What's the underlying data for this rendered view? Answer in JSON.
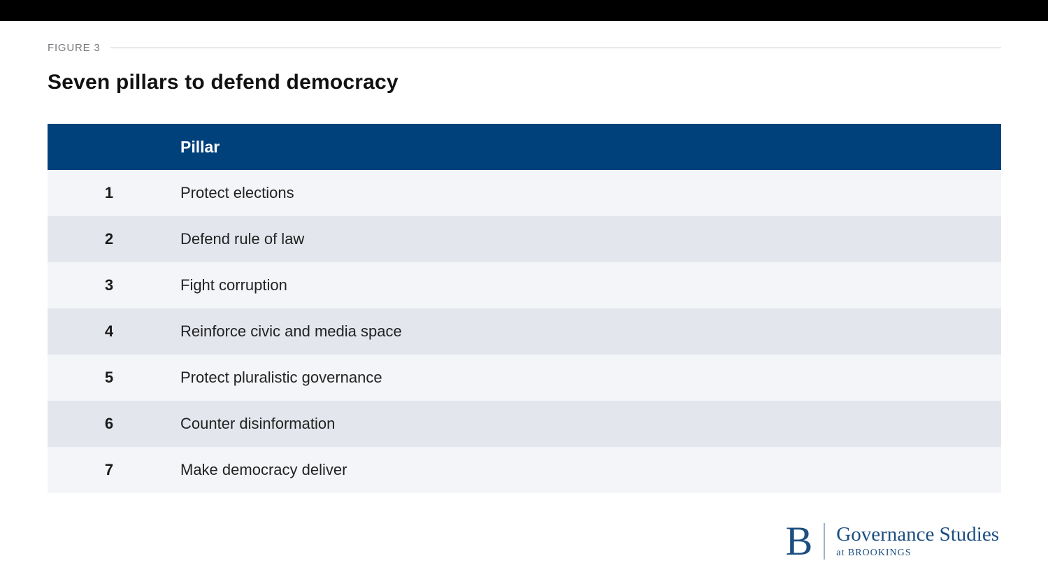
{
  "figure": {
    "label": "FIGURE 3",
    "title": "Seven pillars to defend democracy"
  },
  "chart_data": {
    "type": "table",
    "title": "Seven pillars to defend democracy",
    "columns": [
      "",
      "Pillar"
    ],
    "rows": [
      {
        "number": "1",
        "pillar": "Protect elections"
      },
      {
        "number": "2",
        "pillar": "Defend rule of law"
      },
      {
        "number": "3",
        "pillar": "Fight corruption"
      },
      {
        "number": "4",
        "pillar": "Reinforce civic and media space"
      },
      {
        "number": "5",
        "pillar": "Protect pluralistic governance"
      },
      {
        "number": "6",
        "pillar": "Counter disinformation"
      },
      {
        "number": "7",
        "pillar": "Make democracy deliver"
      }
    ],
    "header_label": "Pillar"
  },
  "logo": {
    "letter": "B",
    "name": "Governance Studies",
    "subtitle": "at BROOKINGS"
  },
  "colors": {
    "header_bg": "#00417c",
    "row_odd": "#f4f5f8",
    "row_even": "#e3e7ed",
    "brand_navy": "#1c4e80",
    "top_bar": "#000000"
  }
}
